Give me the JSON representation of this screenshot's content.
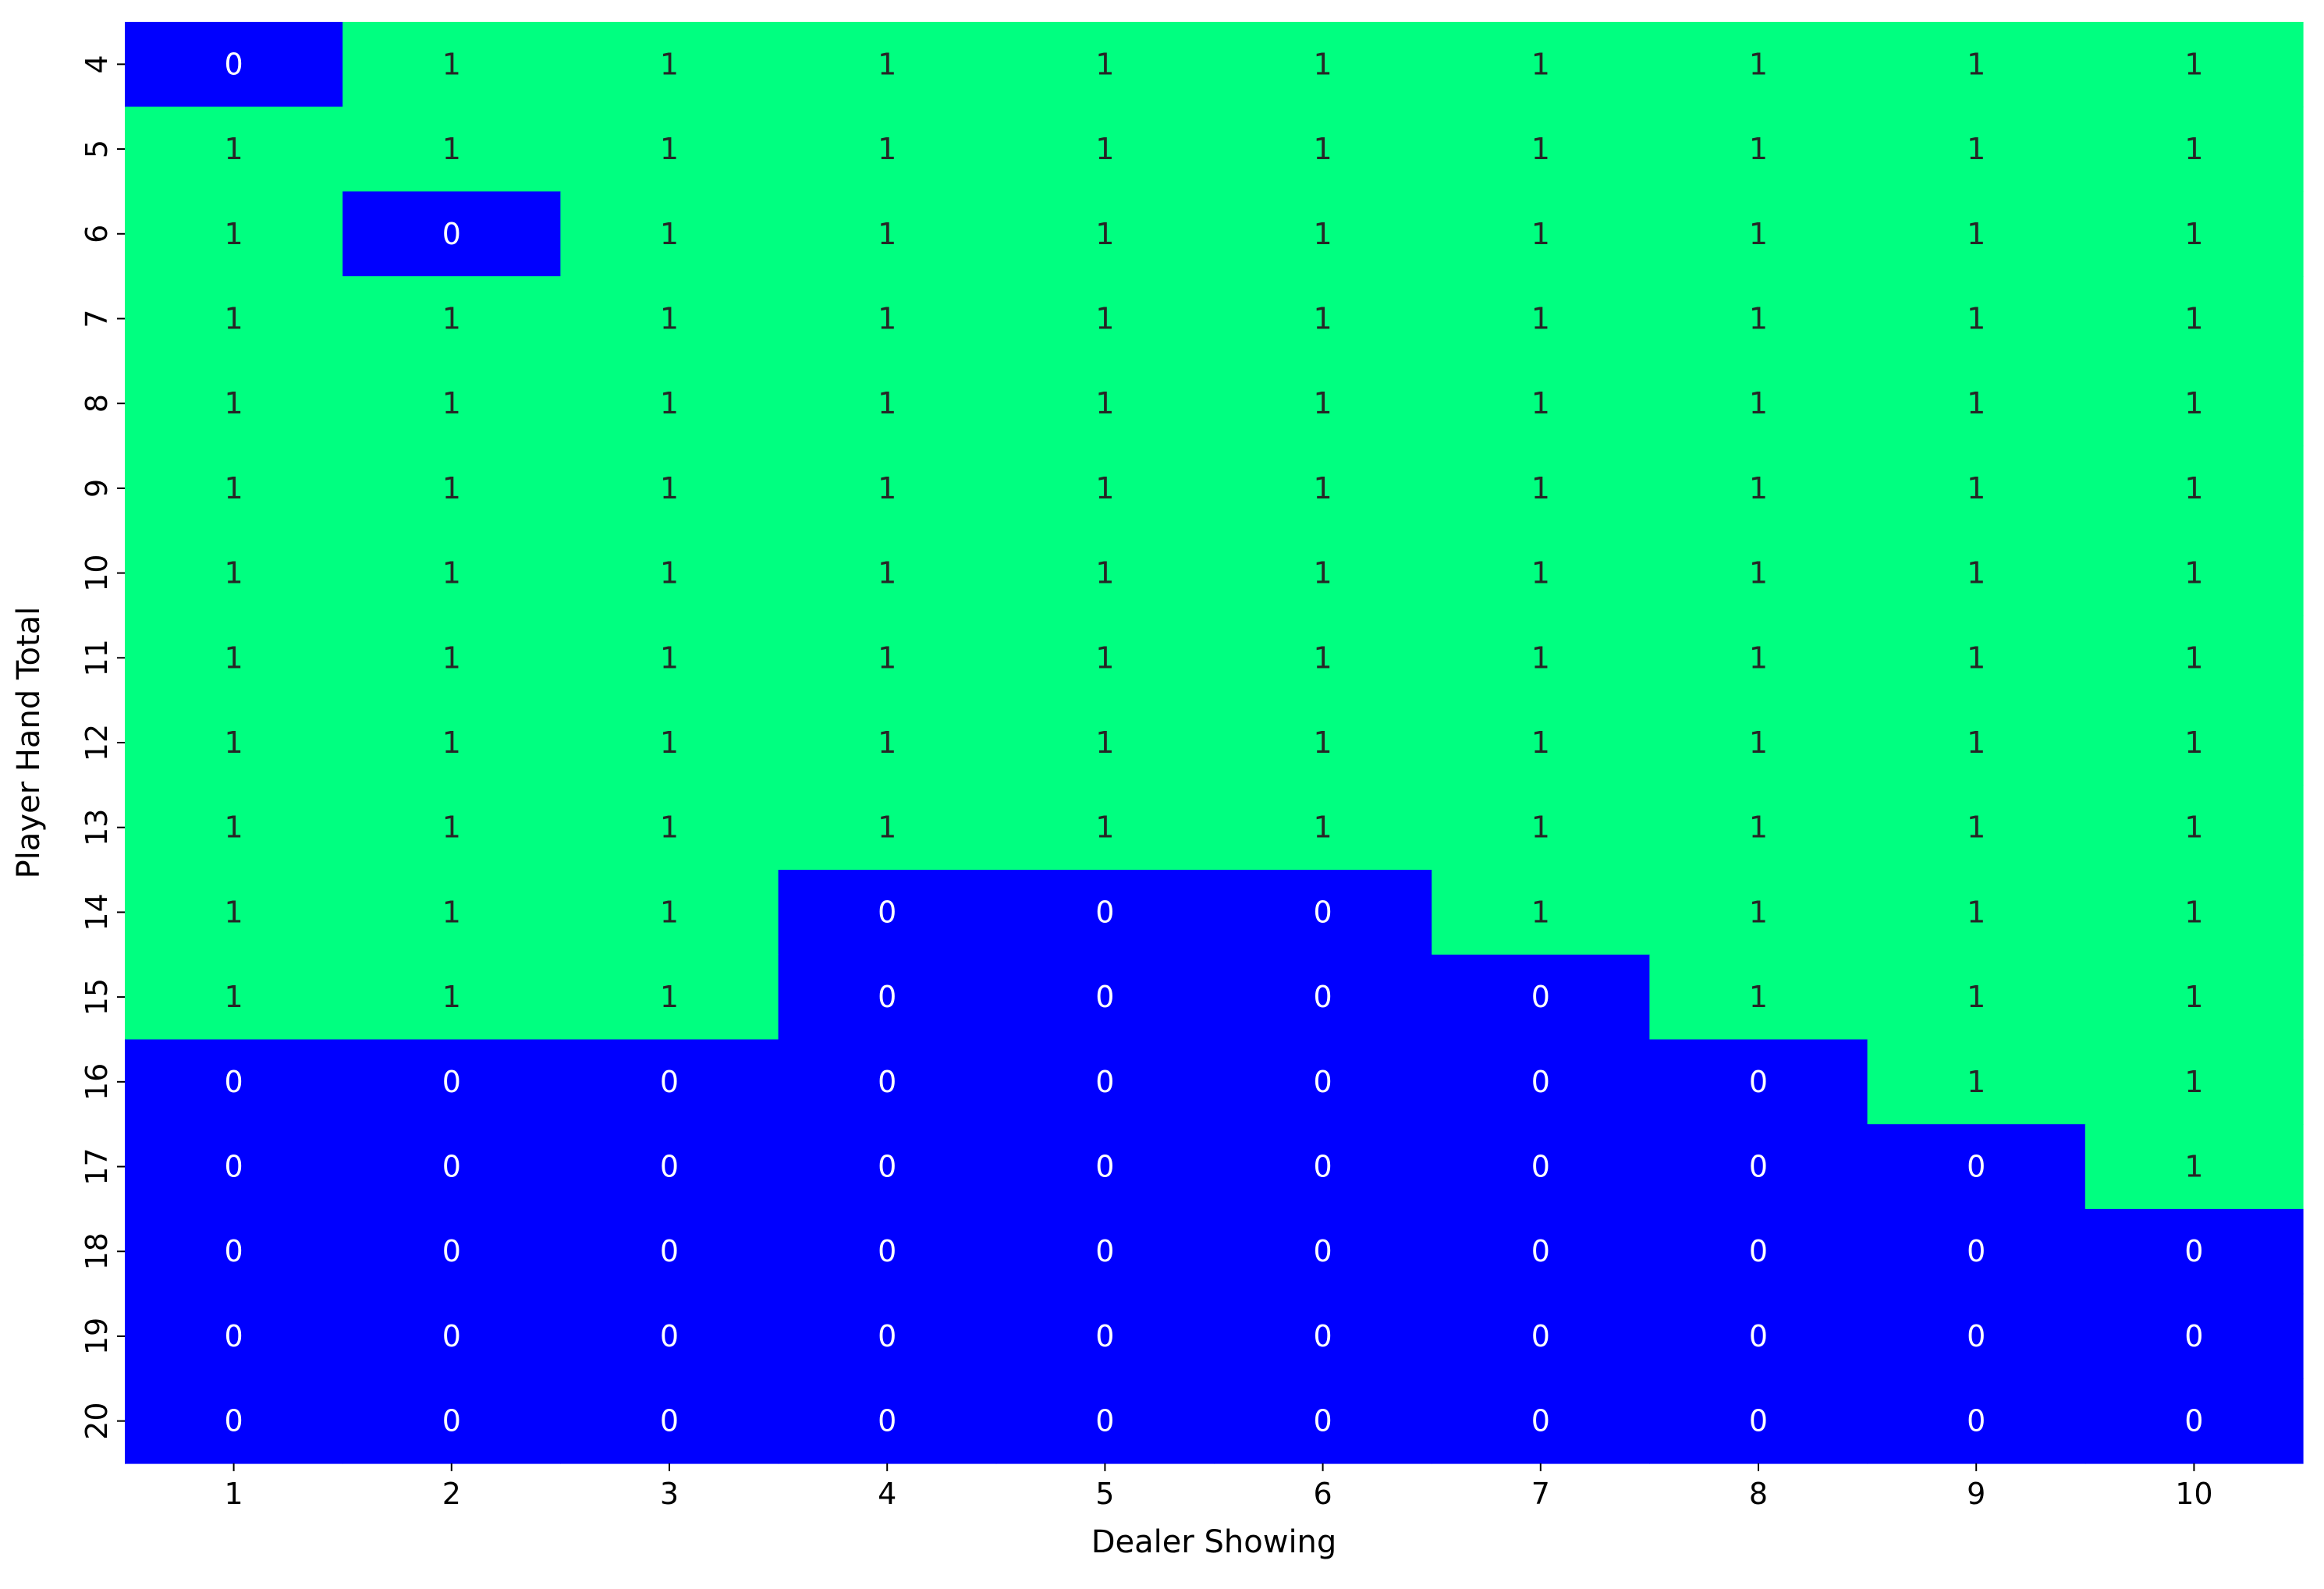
{
  "chart_data": {
    "type": "heatmap",
    "title": "",
    "xlabel": "Dealer Showing",
    "ylabel": "Player Hand Total",
    "x_categories": [
      "1",
      "2",
      "3",
      "4",
      "5",
      "6",
      "7",
      "8",
      "9",
      "10"
    ],
    "y_categories": [
      "4",
      "5",
      "6",
      "7",
      "8",
      "9",
      "10",
      "11",
      "12",
      "13",
      "14",
      "15",
      "16",
      "17",
      "18",
      "19",
      "20"
    ],
    "values": [
      [
        0,
        1,
        1,
        1,
        1,
        1,
        1,
        1,
        1,
        1
      ],
      [
        1,
        1,
        1,
        1,
        1,
        1,
        1,
        1,
        1,
        1
      ],
      [
        1,
        0,
        1,
        1,
        1,
        1,
        1,
        1,
        1,
        1
      ],
      [
        1,
        1,
        1,
        1,
        1,
        1,
        1,
        1,
        1,
        1
      ],
      [
        1,
        1,
        1,
        1,
        1,
        1,
        1,
        1,
        1,
        1
      ],
      [
        1,
        1,
        1,
        1,
        1,
        1,
        1,
        1,
        1,
        1
      ],
      [
        1,
        1,
        1,
        1,
        1,
        1,
        1,
        1,
        1,
        1
      ],
      [
        1,
        1,
        1,
        1,
        1,
        1,
        1,
        1,
        1,
        1
      ],
      [
        1,
        1,
        1,
        1,
        1,
        1,
        1,
        1,
        1,
        1
      ],
      [
        1,
        1,
        1,
        1,
        1,
        1,
        1,
        1,
        1,
        1
      ],
      [
        1,
        1,
        1,
        0,
        0,
        0,
        1,
        1,
        1,
        1
      ],
      [
        1,
        1,
        1,
        0,
        0,
        0,
        0,
        1,
        1,
        1
      ],
      [
        0,
        0,
        0,
        0,
        0,
        0,
        0,
        0,
        1,
        1
      ],
      [
        0,
        0,
        0,
        0,
        0,
        0,
        0,
        0,
        0,
        1
      ],
      [
        0,
        0,
        0,
        0,
        0,
        0,
        0,
        0,
        0,
        0
      ],
      [
        0,
        0,
        0,
        0,
        0,
        0,
        0,
        0,
        0,
        0
      ],
      [
        0,
        0,
        0,
        0,
        0,
        0,
        0,
        0,
        0,
        0
      ]
    ],
    "annotations": true,
    "colorbar": false,
    "grid": false,
    "colors": {
      "0": "#0000ff",
      "1": "#00ff80",
      "text_on_0": "#ffffff",
      "text_on_1": "#262626"
    }
  }
}
